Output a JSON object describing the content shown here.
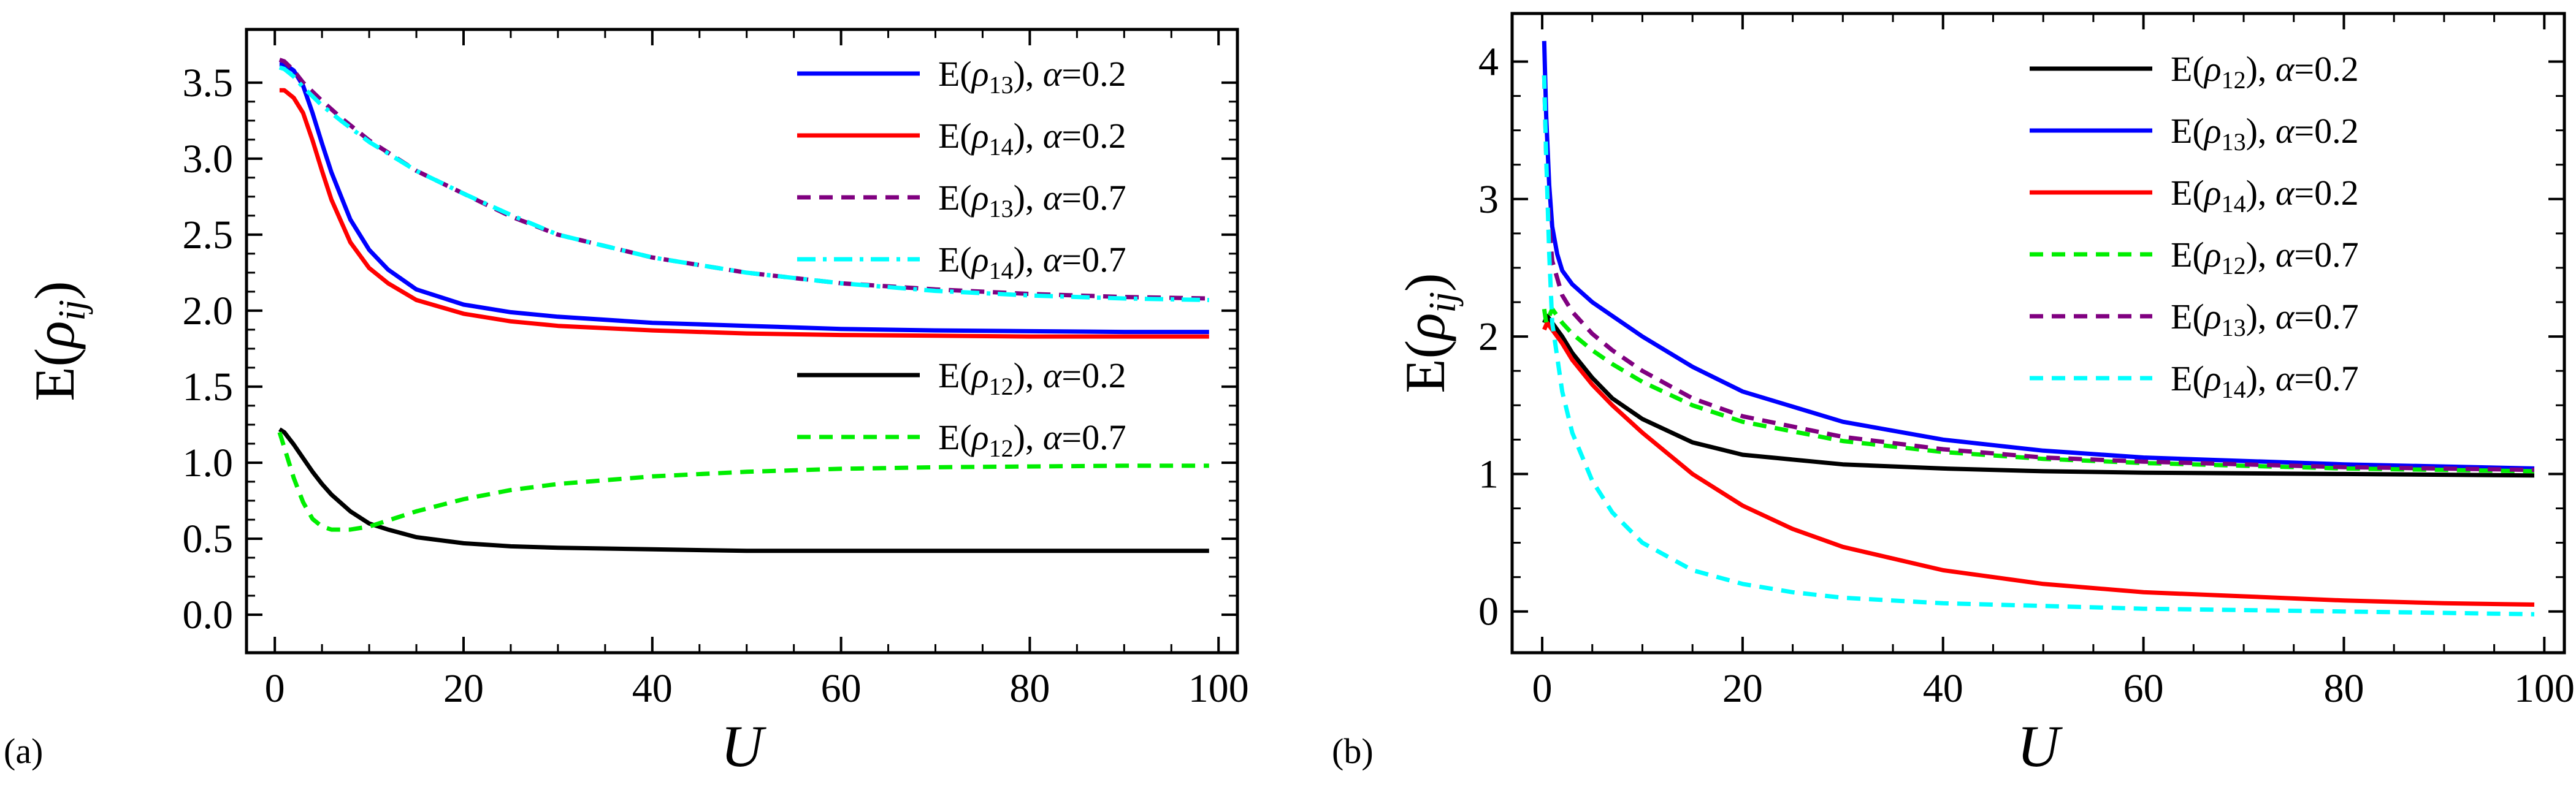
{
  "panel_labels": {
    "a": "(a)",
    "b": "(b)"
  },
  "chart_data": [
    {
      "id": "a",
      "type": "line",
      "panel_label": "(a)",
      "xlabel": "U",
      "ylabel": {
        "base": "E(",
        "sym": "ρ",
        "sub": "ij",
        "close": ")"
      },
      "xlim": [
        -3,
        102
      ],
      "ylim": [
        -0.25,
        3.85
      ],
      "xticks": [
        0,
        20,
        40,
        60,
        80,
        100
      ],
      "xtick_labels": [
        "0",
        "20",
        "40",
        "60",
        "80",
        "100"
      ],
      "yticks": [
        0,
        0.5,
        1,
        1.5,
        2,
        2.5,
        3,
        3.5
      ],
      "ytick_labels": [
        "0.0",
        "0.5",
        "1.0",
        "1.5",
        "2.0",
        "2.5",
        "3.0",
        "3.5"
      ],
      "series": [
        {
          "name": "E(ρ13), α=0.2",
          "rho": "ρ",
          "sub": "13",
          "alpha": "0.2",
          "color": "#0000ff",
          "dash": "solid",
          "x": [
            0.5,
            1,
            2,
            3,
            4,
            5,
            6,
            8,
            10,
            12,
            15,
            20,
            25,
            30,
            40,
            50,
            60,
            70,
            80,
            90,
            99
          ],
          "y": [
            3.62,
            3.62,
            3.58,
            3.48,
            3.3,
            3.1,
            2.91,
            2.6,
            2.4,
            2.27,
            2.14,
            2.04,
            1.99,
            1.96,
            1.92,
            1.9,
            1.88,
            1.87,
            1.865,
            1.86,
            1.86
          ]
        },
        {
          "name": "E(ρ14), α=0.2",
          "rho": "ρ",
          "sub": "14",
          "alpha": "0.2",
          "color": "#ff0000",
          "dash": "solid",
          "x": [
            0.5,
            1,
            2,
            3,
            4,
            5,
            6,
            8,
            10,
            12,
            15,
            20,
            25,
            30,
            40,
            50,
            60,
            70,
            80,
            90,
            99
          ],
          "y": [
            3.45,
            3.45,
            3.4,
            3.3,
            3.12,
            2.92,
            2.73,
            2.45,
            2.28,
            2.18,
            2.07,
            1.98,
            1.93,
            1.9,
            1.87,
            1.85,
            1.84,
            1.835,
            1.83,
            1.83,
            1.83
          ]
        },
        {
          "name": "E(ρ13), α=0.7",
          "rho": "ρ",
          "sub": "13",
          "alpha": "0.7",
          "color": "#800080",
          "dash": "dash",
          "x": [
            0.5,
            1,
            2,
            3,
            5,
            7,
            10,
            15,
            20,
            25,
            30,
            40,
            50,
            60,
            70,
            80,
            90,
            99
          ],
          "y": [
            3.65,
            3.64,
            3.58,
            3.5,
            3.38,
            3.27,
            3.12,
            2.92,
            2.77,
            2.62,
            2.5,
            2.35,
            2.25,
            2.18,
            2.14,
            2.11,
            2.09,
            2.08
          ]
        },
        {
          "name": "E(ρ14), α=0.7",
          "rho": "ρ",
          "sub": "14",
          "alpha": "0.7",
          "color": "#00ffff",
          "dash": "dashdot",
          "x": [
            0.5,
            1,
            2,
            3,
            5,
            7,
            10,
            15,
            20,
            25,
            30,
            40,
            50,
            60,
            70,
            80,
            90,
            99
          ],
          "y": [
            3.6,
            3.59,
            3.54,
            3.47,
            3.35,
            3.25,
            3.11,
            2.92,
            2.77,
            2.63,
            2.5,
            2.35,
            2.25,
            2.18,
            2.13,
            2.1,
            2.08,
            2.07
          ]
        },
        {
          "name": "E(ρ12), α=0.2",
          "rho": "ρ",
          "sub": "12",
          "alpha": "0.2",
          "color": "#000000",
          "dash": "solid",
          "x": [
            0.5,
            1,
            2,
            3,
            4,
            5,
            6,
            8,
            10,
            12,
            15,
            20,
            25,
            30,
            40,
            50,
            60,
            70,
            80,
            90,
            99
          ],
          "y": [
            1.22,
            1.2,
            1.12,
            1.03,
            0.94,
            0.86,
            0.79,
            0.68,
            0.6,
            0.56,
            0.51,
            0.47,
            0.45,
            0.44,
            0.43,
            0.42,
            0.42,
            0.42,
            0.42,
            0.42,
            0.42
          ]
        },
        {
          "name": "E(ρ12), α=0.7",
          "rho": "ρ",
          "sub": "12",
          "alpha": "0.7",
          "color": "#00ee00",
          "dash": "dash",
          "x": [
            0.5,
            1,
            2,
            3,
            4,
            5,
            6,
            8,
            10,
            12,
            15,
            20,
            25,
            30,
            40,
            50,
            60,
            70,
            80,
            90,
            99
          ],
          "y": [
            1.2,
            1.1,
            0.9,
            0.74,
            0.63,
            0.58,
            0.56,
            0.56,
            0.58,
            0.62,
            0.68,
            0.76,
            0.82,
            0.86,
            0.91,
            0.94,
            0.96,
            0.97,
            0.975,
            0.98,
            0.98
          ]
        }
      ],
      "legend_groups": [
        [
          0,
          1,
          2,
          3
        ],
        [
          4,
          5
        ]
      ]
    },
    {
      "id": "b",
      "type": "line",
      "panel_label": "(b)",
      "xlabel": "U",
      "ylabel": {
        "base": "E(",
        "sym": "ρ",
        "sub": "ij",
        "close": ")"
      },
      "xlim": [
        -3,
        102
      ],
      "ylim": [
        -0.3,
        4.35
      ],
      "xticks": [
        0,
        20,
        40,
        60,
        80,
        100
      ],
      "xtick_labels": [
        "0",
        "20",
        "40",
        "60",
        "80",
        "100"
      ],
      "yticks": [
        0,
        1,
        2,
        3,
        4
      ],
      "ytick_labels": [
        "0",
        "1",
        "2",
        "3",
        "4"
      ],
      "series": [
        {
          "name": "E(ρ12), α=0.2",
          "rho": "ρ",
          "sub": "12",
          "alpha": "0.2",
          "color": "#000000",
          "dash": "solid",
          "x": [
            0.2,
            0.5,
            1,
            2,
            3,
            5,
            7,
            10,
            15,
            20,
            30,
            40,
            50,
            60,
            80,
            99
          ],
          "y": [
            2.1,
            2.15,
            2.1,
            2.0,
            1.88,
            1.7,
            1.55,
            1.4,
            1.23,
            1.14,
            1.07,
            1.04,
            1.02,
            1.01,
            1.0,
            0.99
          ]
        },
        {
          "name": "E(ρ13), α=0.2",
          "rho": "ρ",
          "sub": "13",
          "alpha": "0.2",
          "color": "#0000ff",
          "dash": "solid",
          "x": [
            0.2,
            0.4,
            0.7,
            1,
            1.5,
            2,
            3,
            5,
            7,
            10,
            15,
            20,
            30,
            40,
            50,
            60,
            80,
            99
          ],
          "y": [
            4.15,
            3.6,
            3.1,
            2.8,
            2.6,
            2.48,
            2.38,
            2.25,
            2.15,
            2.0,
            1.78,
            1.6,
            1.38,
            1.25,
            1.17,
            1.12,
            1.07,
            1.04
          ]
        },
        {
          "name": "E(ρ14), α=0.2",
          "rho": "ρ",
          "sub": "14",
          "alpha": "0.2",
          "color": "#ff0000",
          "dash": "solid",
          "x": [
            0.2,
            0.5,
            1,
            2,
            3,
            5,
            7,
            10,
            15,
            20,
            25,
            30,
            40,
            50,
            60,
            70,
            80,
            90,
            99
          ],
          "y": [
            2.05,
            2.1,
            2.05,
            1.95,
            1.83,
            1.65,
            1.5,
            1.3,
            1.0,
            0.77,
            0.6,
            0.47,
            0.3,
            0.2,
            0.14,
            0.11,
            0.08,
            0.06,
            0.05
          ]
        },
        {
          "name": "E(ρ12), α=0.7",
          "rho": "ρ",
          "sub": "12",
          "alpha": "0.7",
          "color": "#00ee00",
          "dash": "dash",
          "x": [
            0.2,
            0.4,
            0.7,
            1,
            2,
            3,
            5,
            7,
            10,
            15,
            20,
            30,
            40,
            50,
            60,
            80,
            99
          ],
          "y": [
            2.2,
            2.1,
            2.15,
            2.2,
            2.1,
            2.02,
            1.9,
            1.8,
            1.67,
            1.5,
            1.38,
            1.24,
            1.16,
            1.11,
            1.08,
            1.04,
            1.02
          ]
        },
        {
          "name": "E(ρ13), α=0.7",
          "rho": "ρ",
          "sub": "13",
          "alpha": "0.7",
          "color": "#800080",
          "dash": "dash",
          "x": [
            0.2,
            0.4,
            0.7,
            1,
            2,
            3,
            5,
            7,
            10,
            15,
            20,
            30,
            40,
            50,
            60,
            80,
            99
          ],
          "y": [
            3.9,
            3.3,
            2.8,
            2.55,
            2.3,
            2.18,
            2.02,
            1.9,
            1.75,
            1.55,
            1.42,
            1.27,
            1.18,
            1.12,
            1.09,
            1.05,
            1.03
          ]
        },
        {
          "name": "E(ρ14), α=0.7",
          "rho": "ρ",
          "sub": "14",
          "alpha": "0.7",
          "color": "#00ffff",
          "dash": "dash",
          "x": [
            0.2,
            0.4,
            0.7,
            1,
            2,
            3,
            5,
            7,
            10,
            15,
            20,
            25,
            30,
            40,
            50,
            60,
            80,
            99
          ],
          "y": [
            3.9,
            3.3,
            2.6,
            2.1,
            1.6,
            1.3,
            0.95,
            0.72,
            0.5,
            0.3,
            0.2,
            0.14,
            0.1,
            0.06,
            0.04,
            0.02,
            0.0,
            -0.02
          ]
        }
      ],
      "legend_groups": [
        [
          0,
          1,
          2,
          3,
          4,
          5
        ]
      ]
    }
  ]
}
